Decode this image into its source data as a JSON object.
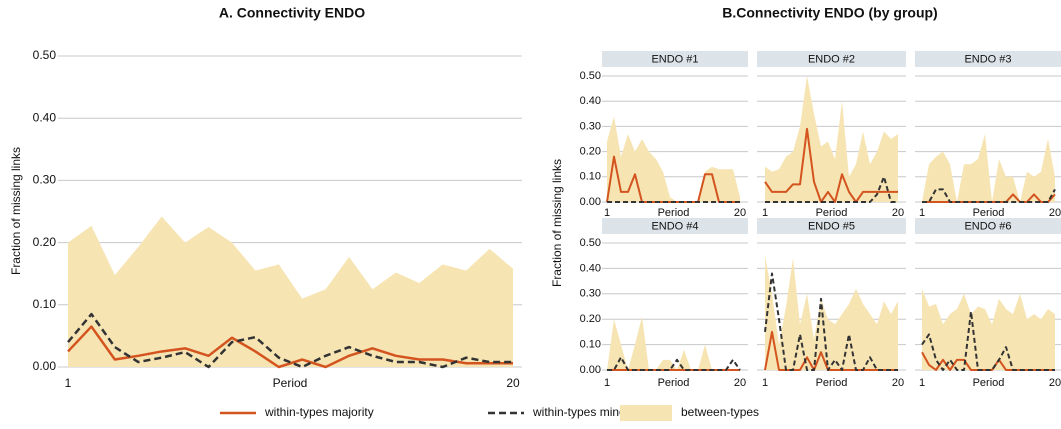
{
  "chart_data": [
    {
      "type": "line",
      "title": "A. Connectivity ENDO",
      "xlabel": "Period",
      "ylabel": "Fraction of missing links",
      "x": [
        1,
        2,
        3,
        4,
        5,
        6,
        7,
        8,
        9,
        10,
        11,
        12,
        13,
        14,
        15,
        16,
        17,
        18,
        19,
        20
      ],
      "xlim": [
        1,
        20
      ],
      "xticks": [
        1,
        20
      ],
      "ylim": [
        0,
        0.5
      ],
      "yticks": [
        {
          "value": 0,
          "label": "0.00"
        },
        {
          "value": 0.1,
          "label": "0.10"
        },
        {
          "value": 0.2,
          "label": "0.20"
        },
        {
          "value": 0.3,
          "label": "0.30"
        },
        {
          "value": 0.4,
          "label": "0.40"
        },
        {
          "value": 0.5,
          "label": "0.50"
        }
      ],
      "grid": true,
      "legend": "bottom",
      "series": [
        {
          "name": "within-types majority",
          "color": "#d4541f",
          "style": "solid",
          "values": [
            0.025,
            0.065,
            0.012,
            0.018,
            0.025,
            0.03,
            0.018,
            0.047,
            0.025,
            0.0,
            0.012,
            0.0,
            0.018,
            0.03,
            0.018,
            0.012,
            0.012,
            0.006,
            0.006,
            0.006
          ]
        },
        {
          "name": "within-types minority",
          "color": "#333333",
          "style": "dashed",
          "values": [
            0.04,
            0.085,
            0.032,
            0.008,
            0.015,
            0.024,
            0.0,
            0.04,
            0.048,
            0.015,
            0.0,
            0.018,
            0.032,
            0.018,
            0.008,
            0.008,
            0.0,
            0.015,
            0.008,
            0.008
          ]
        },
        {
          "name": "between-types",
          "color": "#f6e4b3",
          "style": "area",
          "values": [
            0.2,
            0.227,
            0.148,
            0.193,
            0.242,
            0.2,
            0.225,
            0.2,
            0.155,
            0.165,
            0.11,
            0.125,
            0.177,
            0.125,
            0.152,
            0.135,
            0.165,
            0.155,
            0.19,
            0.158
          ]
        }
      ]
    },
    {
      "type": "line",
      "title": "B.Connectivity ENDO (by group)",
      "ylabel": "Fraction of missing links",
      "x": [
        1,
        2,
        3,
        4,
        5,
        6,
        7,
        8,
        9,
        10,
        11,
        12,
        13,
        14,
        15,
        16,
        17,
        18,
        19,
        20
      ],
      "xlim": [
        1,
        20
      ],
      "xticks": [
        1,
        20
      ],
      "ylim": [
        0,
        0.5
      ],
      "yticks": [
        {
          "value": 0,
          "label": "0.00"
        },
        {
          "value": 0.1,
          "label": "0.10"
        },
        {
          "value": 0.2,
          "label": "0.20"
        },
        {
          "value": 0.3,
          "label": "0.30"
        },
        {
          "value": 0.4,
          "label": "0.40"
        },
        {
          "value": 0.5,
          "label": "0.50"
        }
      ],
      "grid": true,
      "facets": [
        {
          "title": "ENDO #1",
          "xlabel": "Period",
          "series": [
            {
              "values": [
                0,
                0.18,
                0.04,
                0.04,
                0.11,
                0,
                0,
                0,
                0,
                0,
                0,
                0,
                0,
                0,
                0.11,
                0.11,
                0,
                0,
                0,
                0
              ]
            },
            {
              "values": [
                0,
                0,
                0,
                0,
                0,
                0,
                0,
                0,
                0,
                0,
                0,
                0,
                0,
                0,
                0,
                0,
                0,
                0,
                0,
                0
              ]
            },
            {
              "values": [
                0.24,
                0.34,
                0.18,
                0.27,
                0.2,
                0.25,
                0.2,
                0.17,
                0.12,
                0.02,
                0,
                0,
                0,
                0,
                0.12,
                0.14,
                0.13,
                0.13,
                0.13,
                0.02
              ]
            }
          ]
        },
        {
          "title": "ENDO #2",
          "xlabel": "Period",
          "series": [
            {
              "values": [
                0.08,
                0.04,
                0.04,
                0.04,
                0.07,
                0.07,
                0.29,
                0.08,
                0,
                0.04,
                0,
                0.11,
                0.04,
                0,
                0.04,
                0.04,
                0.04,
                0.04,
                0.04,
                0.04
              ]
            },
            {
              "values": [
                0,
                0,
                0,
                0,
                0,
                0,
                0,
                0,
                0,
                0,
                0,
                0,
                0,
                0,
                0,
                0,
                0.03,
                0.1,
                0,
                0
              ]
            },
            {
              "values": [
                0.14,
                0.12,
                0.13,
                0.18,
                0.2,
                0.3,
                0.5,
                0.35,
                0.22,
                0.24,
                0.17,
                0.4,
                0.1,
                0.15,
                0.28,
                0.15,
                0.2,
                0.28,
                0.25,
                0.27
              ]
            }
          ]
        },
        {
          "title": "ENDO #3",
          "xlabel": "Period",
          "series": [
            {
              "values": [
                0,
                0,
                0,
                0,
                0,
                0,
                0,
                0,
                0,
                0,
                0,
                0,
                0,
                0.03,
                0,
                0,
                0.03,
                0,
                0,
                0.03
              ]
            },
            {
              "values": [
                0,
                0,
                0.05,
                0.05,
                0,
                0,
                0,
                0,
                0,
                0,
                0,
                0,
                0,
                0,
                0,
                0,
                0,
                0,
                0,
                0.05
              ]
            },
            {
              "values": [
                0,
                0.15,
                0.18,
                0.2,
                0.15,
                0,
                0.15,
                0.15,
                0.17,
                0.27,
                0,
                0.17,
                0.1,
                0.1,
                0,
                0.12,
                0.1,
                0.12,
                0.25,
                0.1
              ]
            }
          ]
        },
        {
          "title": "ENDO #4",
          "xlabel": "Period",
          "series": [
            {
              "values": [
                0,
                0,
                0,
                0,
                0,
                0,
                0,
                0,
                0,
                0,
                0,
                0,
                0,
                0,
                0,
                0,
                0,
                0,
                0,
                0
              ]
            },
            {
              "values": [
                0,
                0,
                0.05,
                0,
                0,
                0,
                0,
                0,
                0,
                0,
                0.04,
                0,
                0,
                0,
                0,
                0,
                0,
                0,
                0.04,
                0
              ]
            },
            {
              "values": [
                0,
                0.2,
                0.1,
                0,
                0.1,
                0.21,
                0,
                0,
                0.04,
                0.04,
                0,
                0.08,
                0,
                0,
                0.1,
                0,
                0,
                0,
                0,
                0
              ]
            }
          ]
        },
        {
          "title": "ENDO #5",
          "xlabel": "Period",
          "series": [
            {
              "values": [
                0,
                0.15,
                0,
                0,
                0,
                0,
                0.05,
                0,
                0.07,
                0,
                0,
                0,
                0,
                0,
                0,
                0,
                0,
                0,
                0,
                0
              ]
            },
            {
              "values": [
                0.15,
                0.38,
                0.2,
                0,
                0,
                0.14,
                0,
                0,
                0.28,
                0,
                0.04,
                0,
                0.14,
                0,
                0,
                0.05,
                0,
                0,
                0,
                0
              ]
            },
            {
              "values": [
                0.45,
                0.3,
                0.1,
                0.25,
                0.44,
                0.18,
                0.3,
                0.12,
                0.28,
                0.2,
                0.18,
                0.22,
                0.26,
                0.32,
                0.26,
                0.22,
                0.18,
                0.27,
                0.22,
                0.27
              ]
            }
          ]
        },
        {
          "title": "ENDO #6",
          "xlabel": "Period",
          "series": [
            {
              "values": [
                0.07,
                0.02,
                0,
                0.04,
                0,
                0.04,
                0.04,
                0,
                0,
                0,
                0,
                0.04,
                0,
                0,
                0,
                0,
                0,
                0,
                0,
                0
              ]
            },
            {
              "values": [
                0.1,
                0.14,
                0.04,
                0,
                0.04,
                0,
                0,
                0.23,
                0,
                0,
                0,
                0.04,
                0.09,
                0,
                0,
                0,
                0,
                0,
                0,
                0
              ]
            },
            {
              "values": [
                0.32,
                0.25,
                0.26,
                0.18,
                0.22,
                0.24,
                0.3,
                0.22,
                0.25,
                0.24,
                0.18,
                0.28,
                0.24,
                0.22,
                0.3,
                0.2,
                0.22,
                0.2,
                0.24,
                0.22
              ]
            }
          ]
        }
      ]
    }
  ]
}
